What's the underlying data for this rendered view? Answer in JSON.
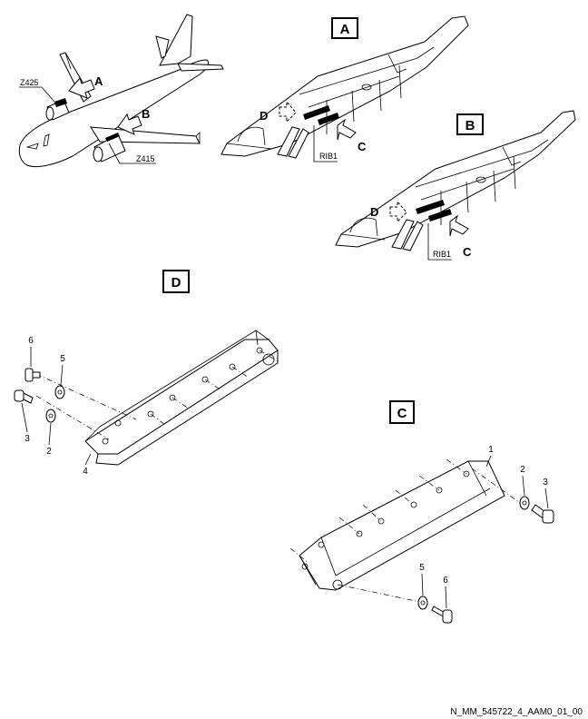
{
  "views": {
    "a": "A",
    "b": "B",
    "c": "C",
    "d": "D"
  },
  "aircraft": {
    "zone_upper": "Z425",
    "zone_lower": "Z415",
    "arrow_a": "A",
    "arrow_b": "B"
  },
  "pylon_a": {
    "arrow_d": "D",
    "arrow_c": "C",
    "rib": "RIB1"
  },
  "pylon_b": {
    "arrow_d": "D",
    "arrow_c": "C",
    "rib": "RIB1"
  },
  "detail_d": {
    "items": [
      "6",
      "5",
      "3",
      "2",
      "4"
    ]
  },
  "detail_c": {
    "items": [
      "1",
      "2",
      "3",
      "5",
      "6"
    ]
  },
  "footer": "N_MM_545722_4_AAM0_01_00"
}
